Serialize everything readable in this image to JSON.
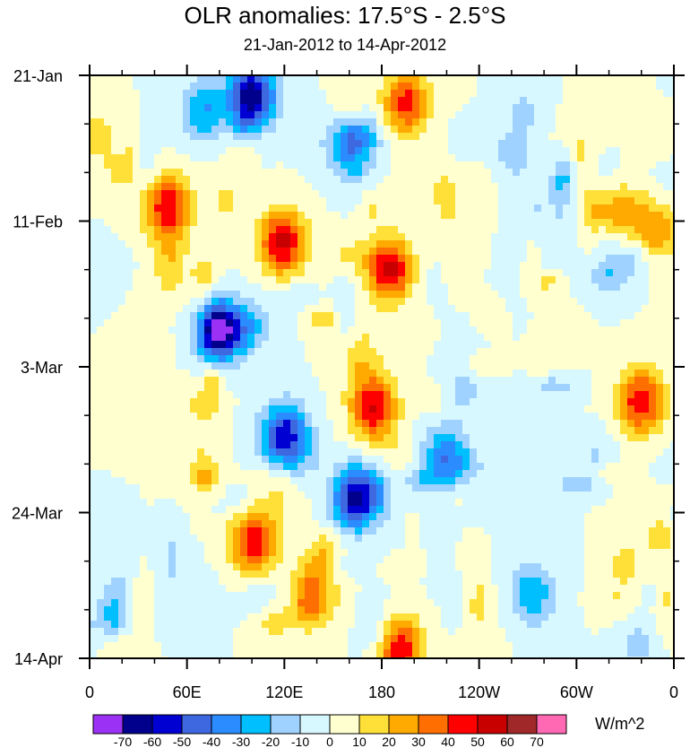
{
  "chart_data": {
    "type": "heatmap",
    "title": "OLR anomalies: 17.5°S - 2.5°S",
    "subtitle": "21-Jan-2012 to 14-Apr-2012",
    "x_tick_labels": [
      "0",
      "60E",
      "120E",
      "180",
      "120W",
      "60W",
      "0"
    ],
    "x_ticks_deg": [
      0,
      60,
      120,
      180,
      240,
      300,
      360
    ],
    "y_tick_labels": [
      "21-Jan",
      "11-Feb",
      "3-Mar",
      "24-Mar",
      "14-Apr"
    ],
    "y_range": [
      "21-Jan-2012",
      "14-Apr-2012"
    ],
    "colorbar": {
      "levels": [
        "-70",
        "-60",
        "-50",
        "-40",
        "-30",
        "-20",
        "-10",
        "0",
        "10",
        "20",
        "30",
        "40",
        "50",
        "60",
        "70"
      ],
      "colors": [
        "#9b31f5",
        "#00008c",
        "#0000d2",
        "#3e68e0",
        "#2a8cff",
        "#00bfff",
        "#a0d2ff",
        "#d8f8ff",
        "#ffffd0",
        "#ffe039",
        "#ffaa00",
        "#ff6e00",
        "#ff0000",
        "#c80000",
        "#a02828",
        "#ff69b4"
      ],
      "units": "W/m^2"
    },
    "anomaly_features": [
      {
        "lon": 100,
        "day": 3,
        "value": -70
      },
      {
        "lon": 163,
        "day": 10,
        "value": -50
      },
      {
        "lon": 195,
        "day": 4,
        "value": 45
      },
      {
        "lon": 119,
        "day": 24,
        "value": 55
      },
      {
        "lon": 185,
        "day": 28,
        "value": 55
      },
      {
        "lon": 48,
        "day": 19,
        "value": 50
      },
      {
        "lon": 350,
        "day": 22,
        "value": 35
      },
      {
        "lon": 80,
        "day": 37,
        "value": -70
      },
      {
        "lon": 120,
        "day": 52,
        "value": -60
      },
      {
        "lon": 165,
        "day": 61,
        "value": -70
      },
      {
        "lon": 175,
        "day": 48,
        "value": 50
      },
      {
        "lon": 220,
        "day": 55,
        "value": -40
      },
      {
        "lon": 340,
        "day": 47,
        "value": 50
      },
      {
        "lon": 100,
        "day": 67,
        "value": 40
      },
      {
        "lon": 140,
        "day": 74,
        "value": 40
      },
      {
        "lon": 190,
        "day": 83,
        "value": 45
      },
      {
        "lon": 270,
        "day": 75,
        "value": -45
      },
      {
        "lon": 70,
        "day": 5,
        "value": -30
      },
      {
        "lon": 320,
        "day": 20,
        "value": 40
      },
      {
        "lon": 260,
        "day": 12,
        "value": -30
      }
    ]
  }
}
